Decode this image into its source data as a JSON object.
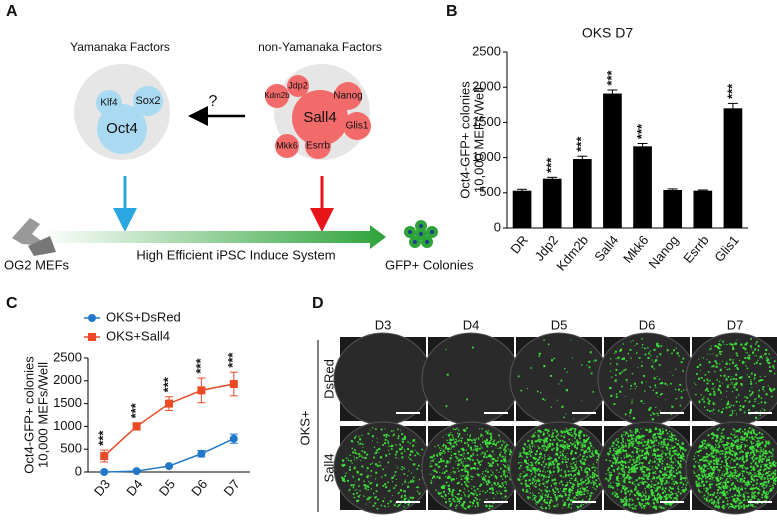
{
  "panel_labels": [
    "A",
    "B",
    "C",
    "D"
  ],
  "panel_a": {
    "left_title": "Yamanaka Factors",
    "right_title": "non-Yamanaka Factors",
    "left_factors": [
      "Klf4",
      "Sox2",
      "Oct4"
    ],
    "question": "?",
    "right_factors": [
      "Sall4",
      "Jdp2",
      "Kdm2b",
      "Nanog",
      "Glis1",
      "Mkk6",
      "Esrrb"
    ],
    "start": "OG2 MEFs",
    "system": "High Efficient iPSC Induce System",
    "end": "GFP+ Colonies"
  },
  "chart_data": [
    {
      "type": "bar",
      "title": "OKS D7",
      "ylabel": [
        "Oct4-GFP+ colonies",
        "10,000 MEFs/Well"
      ],
      "categories": [
        "DR",
        "Jdp2",
        "Kdm2b",
        "Sall4",
        "Mkk6",
        "Nanog",
        "Esrrb",
        "Glis1"
      ],
      "values": [
        530,
        700,
        980,
        1910,
        1160,
        540,
        530,
        1700
      ],
      "errors": [
        20,
        20,
        40,
        50,
        40,
        15,
        10,
        70
      ],
      "significance": [
        null,
        "***",
        "***",
        "***",
        "***",
        null,
        null,
        "***"
      ],
      "color": "#000000",
      "ylim": [
        0,
        2500
      ],
      "yticks": [
        0,
        500,
        1000,
        1500,
        2000,
        2500
      ]
    },
    {
      "type": "line",
      "ylabel": [
        "Oct4-GFP+ colonies",
        "10,000 MEFs/Well"
      ],
      "categories": [
        "D3",
        "D4",
        "D5",
        "D6",
        "D7"
      ],
      "series": [
        {
          "name": "OKS+DsRed",
          "color": "#1f78c8",
          "marker": "circle",
          "values": [
            0,
            20,
            130,
            400,
            730
          ],
          "errors": [
            0,
            0,
            20,
            70,
            100
          ]
        },
        {
          "name": "OKS+Sall4",
          "color": "#ec4a25",
          "marker": "square",
          "values": [
            350,
            1000,
            1500,
            1790,
            1930
          ],
          "errors": [
            130,
            80,
            150,
            270,
            260
          ]
        }
      ],
      "significance": [
        "***",
        "***",
        "***",
        "***",
        "***"
      ],
      "ylim": [
        0,
        2500
      ],
      "yticks": [
        0,
        500,
        1000,
        1500,
        2000,
        2500
      ]
    }
  ],
  "panel_d": {
    "columns": [
      "D3",
      "D4",
      "D5",
      "D6",
      "D7"
    ],
    "rows": [
      "DsRed",
      "Sall4"
    ],
    "group": "OKS+"
  }
}
